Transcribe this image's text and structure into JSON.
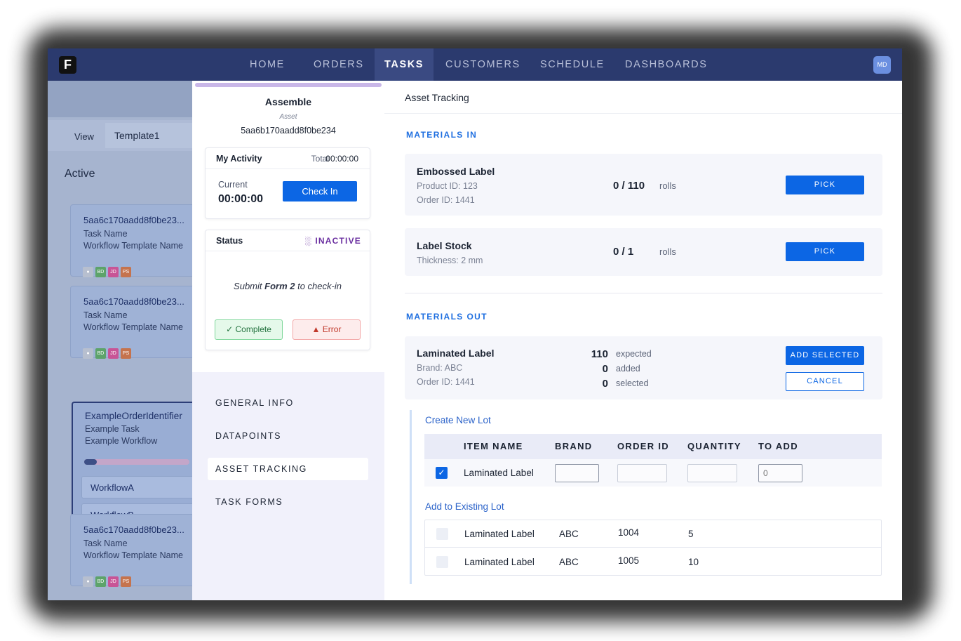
{
  "nav": {
    "logo": "F",
    "items": [
      "HOME",
      "ORDERS",
      "TASKS",
      "CUSTOMERS",
      "SCHEDULE",
      "DASHBOARDS"
    ],
    "active": "TASKS",
    "avatar": "MD"
  },
  "background": {
    "view_label": "View",
    "view_value": "Template1",
    "section": "Active",
    "cards": [
      {
        "id": "5aa6c170aadd8f0be23...",
        "task": "Task Name",
        "workflow": "Workflow Template Name",
        "badges": [
          "BD",
          "JD",
          "PS"
        ]
      },
      {
        "id": "5aa6c170aadd8f0be23...",
        "task": "Task Name",
        "workflow": "Workflow Template Name",
        "badges": [
          "BD",
          "JD",
          "PS"
        ]
      },
      {
        "id": "5aa6c170aadd8f0be23...",
        "task": "Task Name",
        "workflow": "Workflow Template Name",
        "badges": [
          "BD",
          "JD",
          "PS"
        ]
      }
    ],
    "example_card": {
      "id": "ExampleOrderIdentifier",
      "task": "Example Task",
      "workflow": "Example Workflow",
      "progress": 0.12,
      "workflows": [
        "WorkflowA",
        "WorkflowB"
      ]
    }
  },
  "task": {
    "title": "Assemble",
    "asset_label": "Asset",
    "asset_id": "5aa6b170aadd8f0be234"
  },
  "activity": {
    "title": "My Activity",
    "total_label": "Total",
    "total_value": "00:00:00",
    "current_label": "Current",
    "current_value": "00:00:00",
    "checkin_label": "Check In"
  },
  "status": {
    "title": "Status",
    "value": "INACTIVE",
    "message_pre": "Submit ",
    "message_form": "Form 2",
    "message_post": " to check-in",
    "complete_label": "Complete",
    "error_label": "Error"
  },
  "sidenav": {
    "items": [
      "GENERAL INFO",
      "DATAPOINTS",
      "ASSET TRACKING",
      "TASK FORMS"
    ],
    "active": "ASSET TRACKING"
  },
  "asset_tracking": {
    "title": "Asset Tracking",
    "materials_in_heading": "MATERIALS IN",
    "materials_in": [
      {
        "name": "Embossed Label",
        "line1": "Product ID: 123",
        "line2": "Order ID: 1441",
        "qty": "0 / 110",
        "unit": "rolls",
        "action": "PICK"
      },
      {
        "name": "Label Stock",
        "line1": "Thickness: 2 mm",
        "qty": "0 / 1",
        "unit": "rolls",
        "action": "PICK"
      }
    ],
    "materials_out_heading": "MATERIALS OUT",
    "materials_out": {
      "name": "Laminated Label",
      "line1": "Brand: ABC",
      "line2": "Order ID: 1441",
      "expected_value": "110",
      "expected_label": "expected",
      "added_value": "0",
      "added_label": "added",
      "selected_value": "0",
      "selected_label": "selected",
      "add_selected_label": "ADD SELECTED",
      "cancel_label": "CANCEL"
    },
    "create_lot_heading": "Create New Lot",
    "columns": [
      "ITEM NAME",
      "BRAND",
      "ORDER ID",
      "QUANTITY",
      "TO ADD"
    ],
    "new_lot_row": {
      "checked": true,
      "item": "Laminated Label",
      "brand": "",
      "order_id": "",
      "quantity": "",
      "to_add_placeholder": "0"
    },
    "existing_lot_heading": "Add to Existing Lot",
    "existing_lots": [
      {
        "checked": false,
        "item": "Laminated Label",
        "brand": "ABC",
        "order_id": "1004",
        "quantity": "5"
      },
      {
        "checked": false,
        "item": "Laminated Label",
        "brand": "ABC",
        "order_id": "1005",
        "quantity": "10"
      }
    ]
  }
}
